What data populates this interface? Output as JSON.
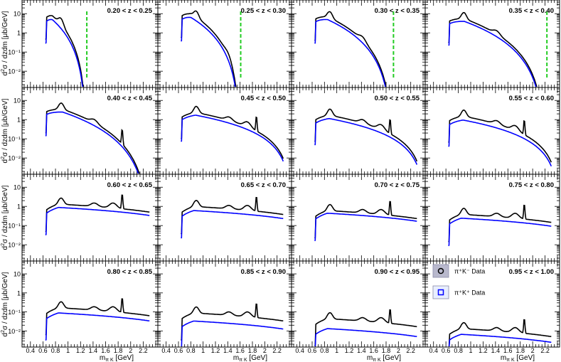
{
  "figure": {
    "ylabel_prefix": "d",
    "ylabel_sup": "2",
    "ylabel_rest": "σ / dzdm [μb/GeV]",
    "xlabel_main": "m",
    "xlabel_sub": "π K",
    "xlabel_unit": " [GeV]"
  },
  "legend": {
    "entries": [
      {
        "label": "π⁺K⁻ Data",
        "color": "#000000",
        "marker": "circle"
      },
      {
        "label": "π⁺K⁺ Data",
        "color": "#0000ff",
        "marker": "square"
      }
    ]
  },
  "colors": {
    "opp_sign": "#000000",
    "same_sign": "#0000ff",
    "threshold": "#22cc22",
    "error_band": "#8a8aa8"
  },
  "chart_data": {
    "type": "line",
    "layout": "4x4 grid of log-y panels",
    "x_axis": {
      "min": 0.3,
      "max": 2.4,
      "ticks": [
        0.4,
        0.6,
        0.8,
        1,
        1.2,
        1.4,
        1.6,
        1.8,
        2,
        2.2
      ],
      "tick_labels": [
        "0.4",
        "0.6",
        "0.8",
        "1",
        "1.2",
        "1.4",
        "1.6",
        "1.8",
        "2",
        "2.2"
      ]
    },
    "y_axis": {
      "scale": "log",
      "min": 0.002,
      "max": 40,
      "ticks": [
        0.01,
        0.1,
        1,
        10
      ],
      "tick_labels": [
        "10⁻²",
        "10⁻¹",
        "1",
        "10"
      ]
    },
    "series_names": [
      "π⁺K⁻ Data",
      "π⁺K⁺ Data"
    ],
    "panels": [
      {
        "label": "0.20 < z < 0.25",
        "xmin": 0.64,
        "xmax": 1.29,
        "edge": 1.3,
        "level": 8.0,
        "level_ss": 5.0,
        "shape": "fall"
      },
      {
        "label": "0.25 < z < 0.30",
        "xmin": 0.64,
        "xmax": 1.6,
        "edge": 1.61,
        "level": 10.0,
        "level_ss": 6.5,
        "shape": "fall"
      },
      {
        "label": "0.30 < z < 0.35",
        "xmin": 0.64,
        "xmax": 1.9,
        "edge": 1.92,
        "level": 7.0,
        "level_ss": 5.0,
        "shape": "fall"
      },
      {
        "label": "0.35 < z < 0.40",
        "xmin": 0.64,
        "xmax": 2.2,
        "edge": 2.23,
        "level": 5.5,
        "level_ss": 4.0,
        "shape": "fall"
      },
      {
        "label": "0.40 < z < 0.45",
        "xmin": 0.64,
        "xmax": 2.3,
        "level": 3.5,
        "level_ss": 2.5,
        "shape": "fall"
      },
      {
        "label": "0.45 < z < 0.50",
        "xmin": 0.64,
        "xmax": 2.3,
        "level": 2.5,
        "level_ss": 1.8,
        "shape": "mid"
      },
      {
        "label": "0.50 < z < 0.55",
        "xmin": 0.64,
        "xmax": 2.3,
        "level": 1.8,
        "level_ss": 1.2,
        "shape": "mid"
      },
      {
        "label": "0.55 < z < 0.60",
        "xmin": 0.64,
        "xmax": 2.3,
        "level": 1.6,
        "level_ss": 1.0,
        "shape": "mid"
      },
      {
        "label": "0.60 < z < 0.65",
        "xmin": 0.64,
        "xmax": 2.3,
        "level": 1.2,
        "level_ss": 0.8,
        "shape": "flat"
      },
      {
        "label": "0.65 < z < 0.70",
        "xmin": 0.64,
        "xmax": 2.3,
        "level": 0.9,
        "level_ss": 0.55,
        "shape": "flat"
      },
      {
        "label": "0.70 < z < 0.75",
        "xmin": 0.64,
        "xmax": 2.3,
        "level": 0.55,
        "level_ss": 0.4,
        "shape": "flat"
      },
      {
        "label": "0.75 < z < 0.80",
        "xmin": 0.64,
        "xmax": 2.3,
        "level": 0.35,
        "level_ss": 0.22,
        "shape": "flat"
      },
      {
        "label": "0.80 < z < 0.85",
        "xmin": 0.64,
        "xmax": 2.3,
        "level": 0.15,
        "level_ss": 0.08,
        "shape": "flat"
      },
      {
        "label": "0.85 < z < 0.90",
        "xmin": 0.64,
        "xmax": 2.3,
        "level": 0.08,
        "level_ss": 0.03,
        "shape": "flat"
      },
      {
        "label": "0.90 < z < 0.95",
        "xmin": 0.64,
        "xmax": 2.3,
        "level": 0.04,
        "level_ss": 0.012,
        "shape": "flat"
      },
      {
        "label": "0.95 < z < 1.00",
        "xmin": 0.64,
        "xmax": 2.3,
        "level": 0.012,
        "level_ss": 0.006,
        "shape": "flat"
      }
    ]
  }
}
